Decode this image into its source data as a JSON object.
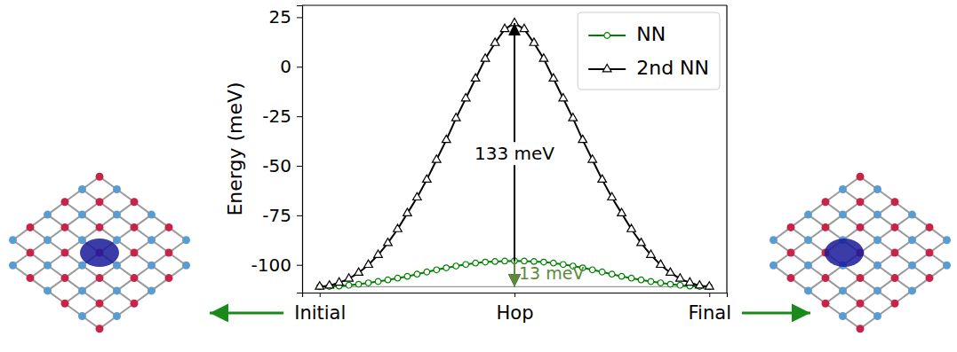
{
  "chart_data": {
    "type": "line",
    "y_label": "Energy (meV)",
    "x": [
      0,
      1,
      2,
      3,
      4,
      5,
      6,
      7,
      8,
      9,
      10,
      11,
      12,
      13,
      14,
      15,
      16,
      17,
      18,
      19,
      20,
      21,
      22,
      23,
      24,
      25,
      26,
      27,
      28,
      29,
      30,
      31,
      32,
      33,
      34,
      35,
      36,
      37,
      38,
      39,
      40
    ],
    "xlim": [
      -1.8,
      41.8
    ],
    "xticks": [
      {
        "value": 0,
        "label": "Initial"
      },
      {
        "value": 20,
        "label": "Hop"
      },
      {
        "value": 40,
        "label": "Final"
      }
    ],
    "ylim": [
      -114,
      31
    ],
    "yticks": [
      -100,
      -75,
      -50,
      -25,
      0,
      25
    ],
    "legend": "upper right",
    "baseline": -111,
    "series": [
      {
        "name": "NN",
        "color": "#008000",
        "marker": "circle",
        "line_style": "solid",
        "values": [
          -111,
          -110.9,
          -110.7,
          -110.3,
          -109.8,
          -109.1,
          -108.4,
          -107.6,
          -106.7,
          -105.8,
          -104.7,
          -103.6,
          -102.5,
          -101.5,
          -100.6,
          -99.8,
          -99.1,
          -98.6,
          -98.3,
          -98.1,
          -98,
          -98.1,
          -98.3,
          -98.6,
          -99.1,
          -99.8,
          -100.6,
          -101.5,
          -102.5,
          -103.6,
          -104.7,
          -105.8,
          -106.7,
          -107.6,
          -108.4,
          -109.1,
          -109.8,
          -110.3,
          -110.7,
          -110.9,
          -111
        ]
      },
      {
        "name": "2nd NN",
        "color": "#000000",
        "marker": "triangle",
        "line_style": "solid",
        "values": [
          -111,
          -110.5,
          -109,
          -107,
          -104,
          -100,
          -95,
          -89,
          -82,
          -74,
          -66,
          -57,
          -47,
          -37,
          -26,
          -16,
          -6,
          4,
          12,
          19,
          22,
          19,
          12,
          4,
          -6,
          -16,
          -26,
          -37,
          -47,
          -57,
          -66,
          -74,
          -82,
          -89,
          -95,
          -100,
          -104,
          -107,
          -109,
          -110.5,
          -111
        ]
      }
    ],
    "annotations": [
      {
        "text": "133 meV",
        "x": 20,
        "from": -111,
        "to": 22,
        "color": "#000000"
      },
      {
        "text": "13 meV",
        "x": 20,
        "from": -111,
        "to": -98,
        "color": "#5c8a3c"
      }
    ]
  }
}
